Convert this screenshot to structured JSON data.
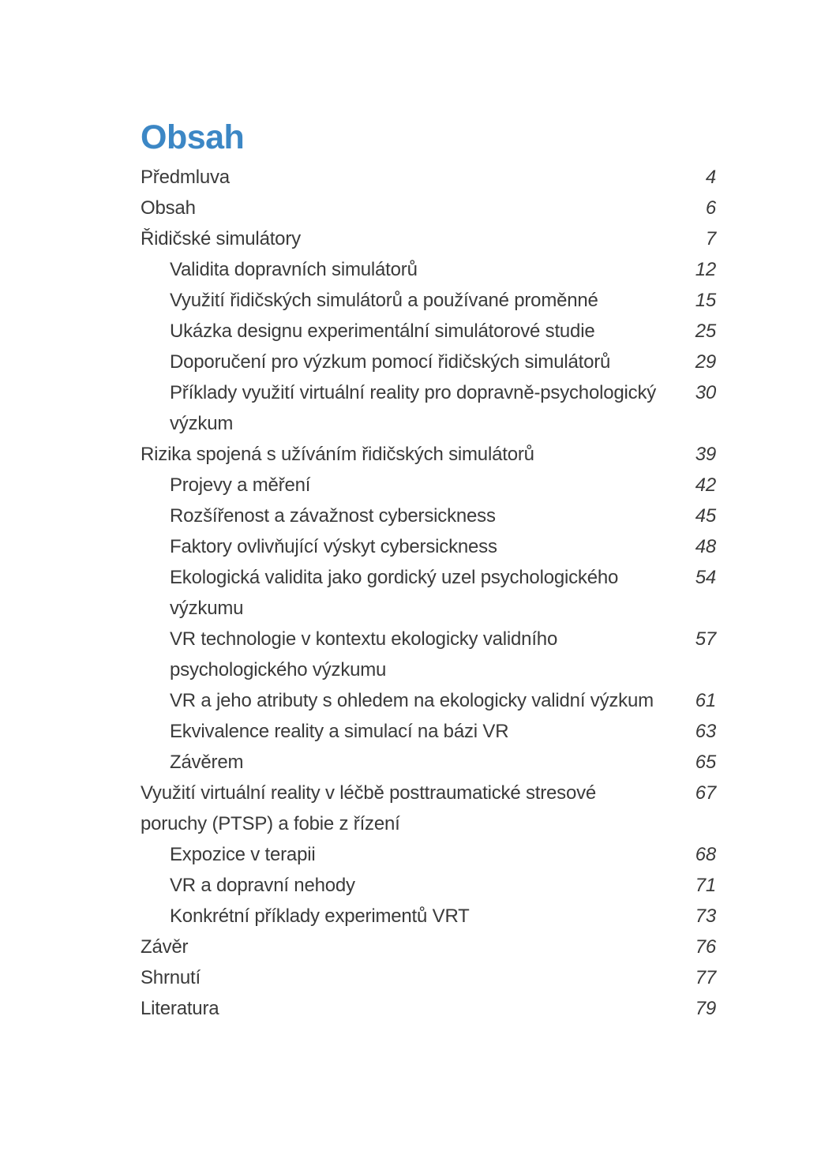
{
  "page": {
    "title": "Obsah"
  },
  "colors": {
    "heading_blue": "#3c87c5",
    "body_text": "#3a3a3a"
  },
  "toc": {
    "entries": [
      {
        "label": "Předmluva",
        "page": "4",
        "level": 0
      },
      {
        "label": "Obsah",
        "page": "6",
        "level": 0
      },
      {
        "label": "Řidičské simulátory",
        "page": "7",
        "level": 0
      },
      {
        "label": "Validita dopravních simulátorů",
        "page": "12",
        "level": 1
      },
      {
        "label": "Využití řidičských simulátorů a používané proměnné",
        "page": "15",
        "level": 1
      },
      {
        "label": "Ukázka designu experimentální simulátorové studie",
        "page": "25",
        "level": 1
      },
      {
        "label": "Doporučení pro výzkum pomocí řidičských simulátorů",
        "page": "29",
        "level": 1
      },
      {
        "label": "Příklady využití virtuální reality pro dopravně-psychologický",
        "label2": "výzkum",
        "page": "30",
        "level": 1
      },
      {
        "label": "Rizika spojená s užíváním řidičských simulátorů",
        "page": "39",
        "level": 0
      },
      {
        "label": "Projevy a měření",
        "page": "42",
        "level": 1
      },
      {
        "label": "Rozšířenost a závažnost cybersickness",
        "page": "45",
        "level": 1
      },
      {
        "label": "Faktory ovlivňující výskyt cybersickness",
        "page": "48",
        "level": 1
      },
      {
        "label": "Ekologická validita jako gordický uzel psychologického",
        "label2": "výzkumu",
        "page": "54",
        "level": 1
      },
      {
        "label": "VR technologie v kontextu ekologicky validního",
        "label2": "psychologického výzkumu",
        "page": "57",
        "level": 1
      },
      {
        "label": "VR a jeho atributy s ohledem na ekologicky validní výzkum",
        "page": "61",
        "level": 1
      },
      {
        "label": "Ekvivalence reality a simulací na bázi VR",
        "page": "63",
        "level": 1
      },
      {
        "label": "Závěrem",
        "page": "65",
        "level": 1
      },
      {
        "label": "Využití virtuální reality v léčbě posttraumatické stresové",
        "label2": "poruchy (PTSP) a fobie z řízení",
        "page": "67",
        "level": 0
      },
      {
        "label": "Expozice v terapii",
        "page": "68",
        "level": 1
      },
      {
        "label": "VR a dopravní nehody",
        "page": "71",
        "level": 1
      },
      {
        "label": "Konkrétní příklady experimentů VRT",
        "page": "73",
        "level": 1
      },
      {
        "label": "Závěr",
        "page": "76",
        "level": 0
      },
      {
        "label": "Shrnutí",
        "page": "77",
        "level": 0
      },
      {
        "label": "Literatura",
        "page": "79",
        "level": 0
      }
    ]
  }
}
